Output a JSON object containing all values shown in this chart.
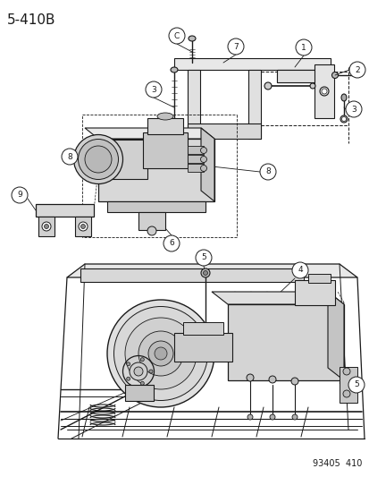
{
  "title_label": "5-410B",
  "figure_number": "93405  410",
  "bg_color": "#ffffff",
  "line_color": "#1a1a1a",
  "title_fontsize": 11,
  "fig_number_fontsize": 7
}
